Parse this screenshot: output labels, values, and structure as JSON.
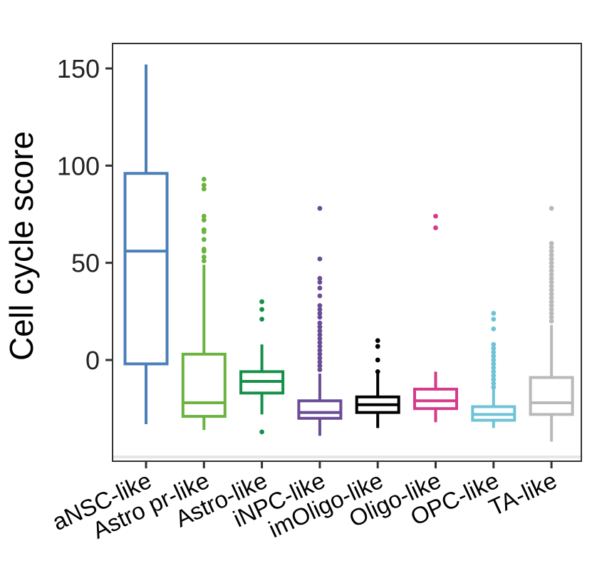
{
  "chart_data": {
    "type": "boxplot",
    "title": "",
    "xlabel": "",
    "ylabel": "Cell cycle score",
    "ylim": [
      -52,
      162
    ],
    "yticks": [
      0,
      50,
      100,
      150
    ],
    "grid": false,
    "legend": "none",
    "categories": [
      "aNSC-like",
      "Astro pr-like",
      "Astro-like",
      "iNPC-like",
      "imOligo-like",
      "Oligo-like",
      "OPC-like",
      "TA-like"
    ],
    "boxes": [
      {
        "name": "aNSC-like",
        "color": "#4a7fb8",
        "whisker_low": -33,
        "q1": -2,
        "median": 56,
        "q3": 96,
        "whisker_high": 152,
        "outliers": []
      },
      {
        "name": "Astro pr-like",
        "color": "#6bb33f",
        "whisker_low": -36,
        "q1": -29,
        "median": -22,
        "q3": 3,
        "whisker_high": 49,
        "outliers": [
          51,
          53,
          56,
          57,
          62,
          66,
          67,
          72,
          74,
          88,
          90,
          93
        ]
      },
      {
        "name": "Astro-like",
        "color": "#14904a",
        "whisker_low": -28,
        "q1": -17,
        "median": -11,
        "q3": -6,
        "whisker_high": 8,
        "outliers": [
          -37,
          21,
          26,
          30
        ]
      },
      {
        "name": "iNPC-like",
        "color": "#6a4b96",
        "whisker_low": -39,
        "q1": -30,
        "median": -27,
        "q3": -21,
        "whisker_high": -7,
        "outliers": [
          -5,
          -3,
          -1,
          1,
          3,
          5,
          7,
          9,
          11,
          13,
          15,
          17,
          19,
          22,
          24,
          26,
          28,
          33,
          37,
          40,
          42,
          52,
          78
        ]
      },
      {
        "name": "imOligo-like",
        "color": "#000000",
        "whisker_low": -35,
        "q1": -27,
        "median": -23,
        "q3": -19,
        "whisker_high": -7,
        "outliers": [
          -6,
          0,
          7,
          10
        ]
      },
      {
        "name": "Oligo-like",
        "color": "#d63a8a",
        "whisker_low": -32,
        "q1": -25,
        "median": -21,
        "q3": -15,
        "whisker_high": -6,
        "outliers": [
          68,
          74
        ]
      },
      {
        "name": "OPC-like",
        "color": "#6ec3d6",
        "whisker_low": -35,
        "q1": -31,
        "median": -28,
        "q3": -24,
        "whisker_high": -15,
        "outliers": [
          -14,
          -12,
          -10,
          -8,
          -6,
          -4,
          -2,
          0,
          2,
          4,
          6,
          8,
          16,
          21,
          24
        ]
      },
      {
        "name": "TA-like",
        "color": "#b9b9b9",
        "whisker_low": -42,
        "q1": -28,
        "median": -22,
        "q3": -9,
        "whisker_high": 18,
        "outliers": [
          20,
          22,
          24,
          26,
          28,
          30,
          32,
          34,
          36,
          38,
          40,
          42,
          44,
          46,
          48,
          50,
          52,
          54,
          56,
          58,
          60,
          78
        ]
      }
    ]
  }
}
